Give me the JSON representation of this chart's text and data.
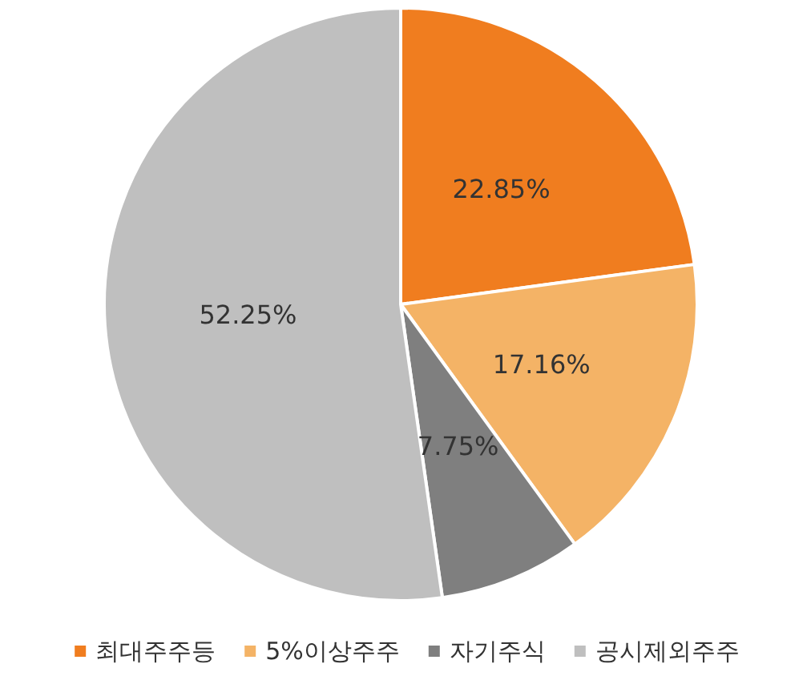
{
  "chart_data": {
    "type": "pie",
    "categories": [
      "최대주주등",
      "5%이상주주",
      "자기주식",
      "공시제외주주"
    ],
    "values": [
      22.85,
      17.16,
      7.75,
      52.25
    ],
    "colors": [
      "#f07d1f",
      "#f4b366",
      "#7f7f7f",
      "#bfbfbf"
    ],
    "value_labels": [
      "22.85%",
      "17.16%",
      "7.75%",
      "52.25%"
    ],
    "legend": "bottom"
  }
}
